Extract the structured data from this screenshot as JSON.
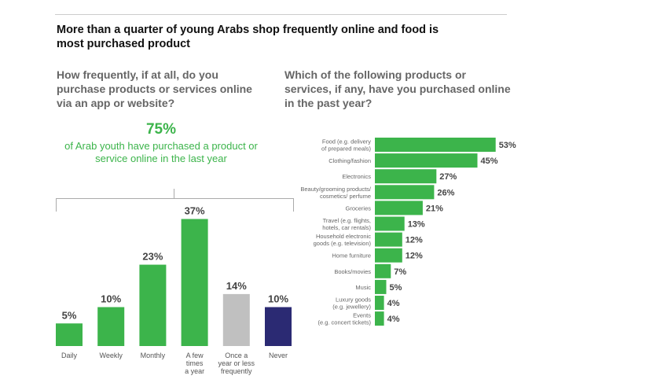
{
  "title": "More than a quarter of young Arabs shop frequently online and food is most purchased product",
  "highlight": {
    "value": "75%",
    "text": "of Arab youth have purchased a product or service online in the last year"
  },
  "chart_data": [
    {
      "type": "bar",
      "title": "How frequently, if at all, do you purchase products or services online via an app or website?",
      "categories": [
        [
          "Daily"
        ],
        [
          "Weekly"
        ],
        [
          "Monthly"
        ],
        [
          "A few",
          "times",
          "a year"
        ],
        [
          "Once a",
          "year or less",
          "frequently"
        ],
        [
          "Never"
        ]
      ],
      "values": [
        5,
        10,
        23,
        37,
        14,
        10
      ],
      "labels": [
        "5%",
        "10%",
        "23%",
        "37%",
        "14%",
        "10%"
      ],
      "colors": [
        "#3cb44b",
        "#3cb44b",
        "#3cb44b",
        "#3cb44b",
        "#c0c0c0",
        "#2b2a73"
      ],
      "unit": "%"
    },
    {
      "type": "bar",
      "orientation": "horizontal",
      "title": "Which of the following products or services, if any, have you purchased online in the past year?",
      "categories": [
        [
          "Food (e.g. delivery",
          "of prepared meals)"
        ],
        [
          "Clothing/fashion"
        ],
        [
          "Electronics"
        ],
        [
          "Beauty/grooming products/",
          "cosmetics/ perfume"
        ],
        [
          "Groceries"
        ],
        [
          "Travel (e.g. flights,",
          "hotels, car rentals)"
        ],
        [
          "Household electronic",
          "goods (e.g. television)"
        ],
        [
          "Home furniture"
        ],
        [
          "Books/movies"
        ],
        [
          "Music"
        ],
        [
          "Luxury goods",
          "(e.g. jewellery)"
        ],
        [
          "Events",
          "(e.g. concert tickets)"
        ]
      ],
      "values": [
        53,
        45,
        27,
        26,
        21,
        13,
        12,
        12,
        7,
        5,
        4,
        4
      ],
      "labels": [
        "53%",
        "45%",
        "27%",
        "26%",
        "21%",
        "13%",
        "12%",
        "12%",
        "7%",
        "5%",
        "4%",
        "4%"
      ],
      "color": "#3cb44b",
      "unit": "%"
    }
  ]
}
